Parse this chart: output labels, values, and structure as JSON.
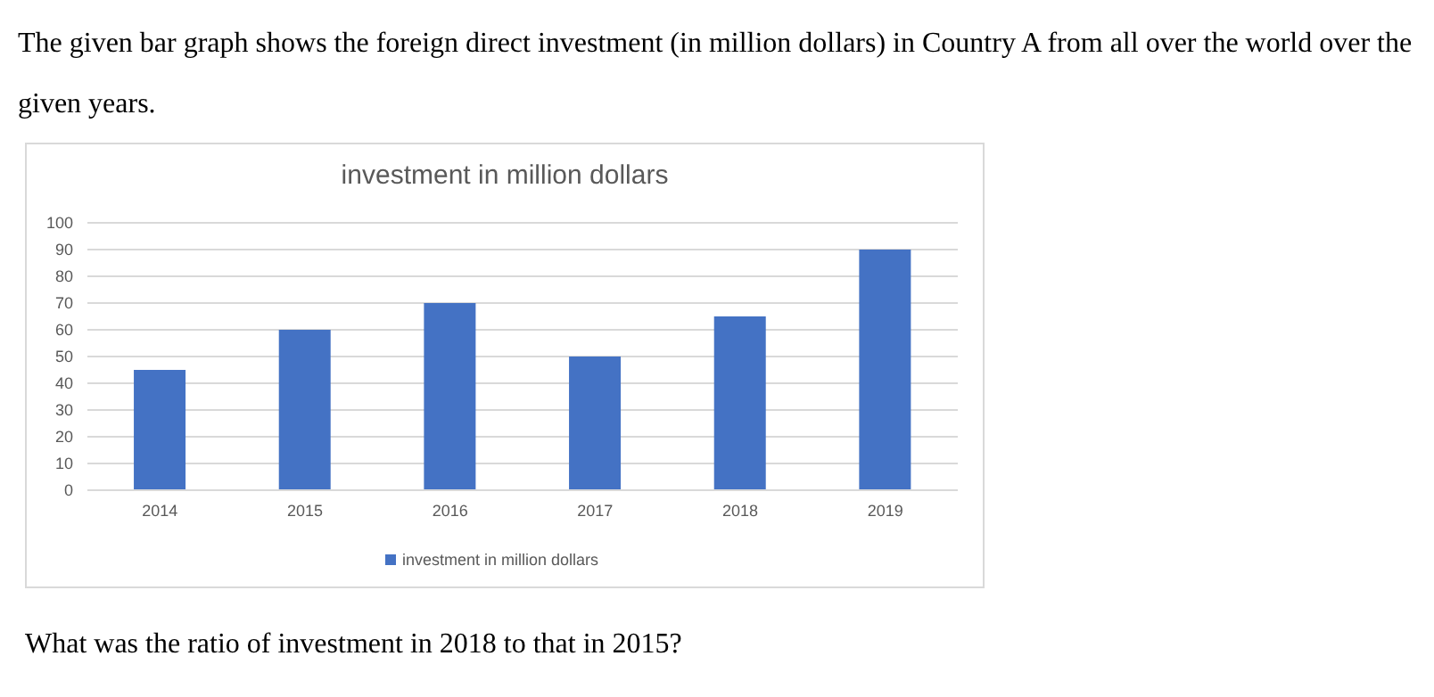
{
  "chart_data": {
    "type": "bar",
    "title": "investment in million dollars",
    "subtitle": "The given bar graph shows the foreign direct investment (in million dollars) in Country A from all over the world over the given years.",
    "annotations": [
      "What was the ratio of investment in 2018 to that in 2015?"
    ],
    "categories": [
      "2014",
      "2015",
      "2016",
      "2017",
      "2018",
      "2019"
    ],
    "series": [
      {
        "name": "investment in million dollars",
        "color": "#4472c4",
        "values": [
          45,
          60,
          70,
          50,
          65,
          90
        ]
      }
    ],
    "ylim": [
      0,
      100
    ],
    "yticks": [
      0,
      10,
      20,
      30,
      40,
      50,
      60,
      70,
      80,
      90,
      100
    ],
    "grid": "y",
    "legend": "bottom"
  }
}
